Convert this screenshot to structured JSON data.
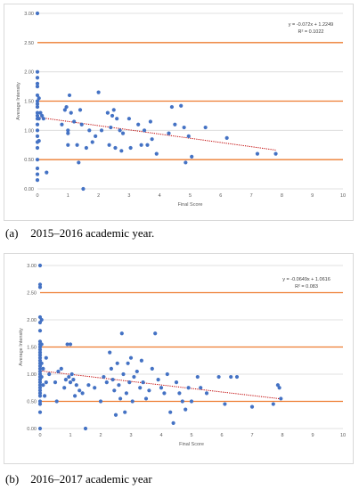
{
  "chart_data": [
    {
      "type": "scatter",
      "xlabel": "Final Score",
      "ylabel": "Average Intensity",
      "xlim": [
        0,
        10
      ],
      "ylim": [
        0,
        3
      ],
      "xticks": [
        "0",
        "1",
        "2",
        "3",
        "4",
        "5",
        "6",
        "7",
        "8",
        "9",
        "10"
      ],
      "yticks": [
        "0.00",
        "0.50",
        "1.00",
        "1.50",
        "2.00",
        "2.50",
        "3.00"
      ],
      "grid": "horizontal",
      "reference_lines": [
        0.5,
        1.5,
        2.5
      ],
      "trendline": {
        "slope": -0.072,
        "intercept": 1.2249
      },
      "equation": "y = -0.072x + 1.2249",
      "r_squared": "R² = 0.1022",
      "colors": {
        "points": "#4472c4",
        "trend": "#c00000",
        "reference": "#ed7d31",
        "grid": "#d9d9d9"
      },
      "points": [
        [
          0,
          3.0
        ],
        [
          0,
          2.0
        ],
        [
          0,
          1.9
        ],
        [
          0,
          1.8
        ],
        [
          0,
          1.75
        ],
        [
          0,
          1.6
        ],
        [
          0,
          1.5
        ],
        [
          0,
          1.45
        ],
        [
          0,
          1.4
        ],
        [
          0,
          1.3
        ],
        [
          0,
          1.25
        ],
        [
          0,
          1.2
        ],
        [
          0,
          1.1
        ],
        [
          0,
          1.0
        ],
        [
          0,
          0.9
        ],
        [
          0,
          0.8
        ],
        [
          0,
          0.7
        ],
        [
          0,
          0.5
        ],
        [
          0,
          0.35
        ],
        [
          0,
          0.25
        ],
        [
          0,
          0.15
        ],
        [
          0.05,
          1.55
        ],
        [
          0.05,
          1.2
        ],
        [
          0.05,
          0.82
        ],
        [
          0.1,
          1.3
        ],
        [
          0.15,
          1.25
        ],
        [
          0.2,
          1.2
        ],
        [
          0.3,
          0.28
        ],
        [
          0.8,
          1.1
        ],
        [
          0.9,
          1.35
        ],
        [
          0.95,
          1.4
        ],
        [
          1.0,
          1.0
        ],
        [
          1.0,
          0.95
        ],
        [
          1.0,
          0.75
        ],
        [
          1.05,
          1.6
        ],
        [
          1.1,
          1.3
        ],
        [
          1.2,
          1.15
        ],
        [
          1.3,
          0.75
        ],
        [
          1.35,
          0.45
        ],
        [
          1.4,
          1.35
        ],
        [
          1.45,
          1.1
        ],
        [
          1.5,
          0.0
        ],
        [
          1.6,
          0.7
        ],
        [
          1.7,
          1.0
        ],
        [
          1.8,
          0.8
        ],
        [
          1.9,
          0.9
        ],
        [
          2.0,
          1.65
        ],
        [
          2.1,
          1.0
        ],
        [
          2.3,
          1.3
        ],
        [
          2.35,
          0.75
        ],
        [
          2.4,
          1.05
        ],
        [
          2.45,
          1.25
        ],
        [
          2.5,
          1.35
        ],
        [
          2.55,
          0.7
        ],
        [
          2.6,
          1.2
        ],
        [
          2.7,
          1.0
        ],
        [
          2.75,
          0.65
        ],
        [
          2.8,
          0.95
        ],
        [
          3.0,
          1.2
        ],
        [
          3.05,
          0.7
        ],
        [
          3.3,
          1.1
        ],
        [
          3.4,
          0.75
        ],
        [
          3.5,
          1.0
        ],
        [
          3.6,
          0.75
        ],
        [
          3.7,
          1.15
        ],
        [
          3.75,
          0.85
        ],
        [
          3.9,
          0.6
        ],
        [
          4.3,
          0.95
        ],
        [
          4.4,
          1.4
        ],
        [
          4.5,
          1.1
        ],
        [
          4.7,
          1.42
        ],
        [
          4.8,
          1.05
        ],
        [
          4.85,
          0.45
        ],
        [
          4.95,
          0.9
        ],
        [
          5.05,
          0.55
        ],
        [
          5.5,
          1.05
        ],
        [
          6.2,
          0.87
        ],
        [
          7.2,
          0.6
        ],
        [
          7.8,
          0.6
        ]
      ]
    },
    {
      "type": "scatter",
      "xlabel": "Final Score",
      "ylabel": "Average Intensity",
      "xlim": [
        0,
        10
      ],
      "ylim": [
        0,
        3
      ],
      "xticks": [
        "0",
        "1",
        "2",
        "3",
        "4",
        "5",
        "6",
        "7",
        "8",
        "9",
        "10"
      ],
      "yticks": [
        "0.00",
        "0.50",
        "1.00",
        "1.50",
        "2.00",
        "2.50",
        "3.00"
      ],
      "grid": "horizontal",
      "reference_lines": [
        0.5,
        1.5,
        2.5
      ],
      "trendline": {
        "slope": -0.0649,
        "intercept": 1.0616
      },
      "equation": "y = -0.0649x + 1.0616",
      "r_squared": "R² = 0.083",
      "colors": {
        "points": "#4472c4",
        "trend": "#c00000",
        "reference": "#ed7d31",
        "grid": "#d9d9d9"
      },
      "points": [
        [
          0,
          3.0
        ],
        [
          0,
          2.65
        ],
        [
          0,
          2.6
        ],
        [
          0,
          2.05
        ],
        [
          0,
          1.95
        ],
        [
          0,
          1.8
        ],
        [
          0,
          1.6
        ],
        [
          0,
          1.55
        ],
        [
          0,
          1.5
        ],
        [
          0,
          1.45
        ],
        [
          0,
          1.4
        ],
        [
          0,
          1.35
        ],
        [
          0,
          1.3
        ],
        [
          0,
          1.25
        ],
        [
          0,
          1.2
        ],
        [
          0,
          1.15
        ],
        [
          0,
          1.1
        ],
        [
          0,
          1.05
        ],
        [
          0,
          1.0
        ],
        [
          0,
          0.95
        ],
        [
          0,
          0.9
        ],
        [
          0,
          0.85
        ],
        [
          0,
          0.8
        ],
        [
          0,
          0.75
        ],
        [
          0,
          0.7
        ],
        [
          0,
          0.65
        ],
        [
          0,
          0.6
        ],
        [
          0,
          0.5
        ],
        [
          0,
          0.45
        ],
        [
          0,
          0.3
        ],
        [
          0,
          0.0
        ],
        [
          0.05,
          2.0
        ],
        [
          0.05,
          1.55
        ],
        [
          0.05,
          1.2
        ],
        [
          0.05,
          0.95
        ],
        [
          0.1,
          1.1
        ],
        [
          0.1,
          0.8
        ],
        [
          0.15,
          0.6
        ],
        [
          0.2,
          1.3
        ],
        [
          0.2,
          0.85
        ],
        [
          0.3,
          1.0
        ],
        [
          0.5,
          0.85
        ],
        [
          0.55,
          0.5
        ],
        [
          0.6,
          1.05
        ],
        [
          0.7,
          1.1
        ],
        [
          0.8,
          0.75
        ],
        [
          0.85,
          0.9
        ],
        [
          0.9,
          1.55
        ],
        [
          0.95,
          0.95
        ],
        [
          1.0,
          1.55
        ],
        [
          1.0,
          0.85
        ],
        [
          1.05,
          1.0
        ],
        [
          1.1,
          0.9
        ],
        [
          1.15,
          0.6
        ],
        [
          1.2,
          0.8
        ],
        [
          1.3,
          0.7
        ],
        [
          1.4,
          0.65
        ],
        [
          1.5,
          0.0
        ],
        [
          1.6,
          0.8
        ],
        [
          1.8,
          0.75
        ],
        [
          2.0,
          0.5
        ],
        [
          2.1,
          0.95
        ],
        [
          2.2,
          0.85
        ],
        [
          2.3,
          1.4
        ],
        [
          2.35,
          1.1
        ],
        [
          2.4,
          0.9
        ],
        [
          2.45,
          0.7
        ],
        [
          2.5,
          0.25
        ],
        [
          2.55,
          1.2
        ],
        [
          2.6,
          0.8
        ],
        [
          2.65,
          0.55
        ],
        [
          2.7,
          1.75
        ],
        [
          2.75,
          1.0
        ],
        [
          2.8,
          0.3
        ],
        [
          2.85,
          0.65
        ],
        [
          2.9,
          1.2
        ],
        [
          2.95,
          0.85
        ],
        [
          3.0,
          1.3
        ],
        [
          3.05,
          0.5
        ],
        [
          3.1,
          0.95
        ],
        [
          3.2,
          1.05
        ],
        [
          3.3,
          0.75
        ],
        [
          3.35,
          1.25
        ],
        [
          3.4,
          0.85
        ],
        [
          3.5,
          0.55
        ],
        [
          3.6,
          0.7
        ],
        [
          3.7,
          1.1
        ],
        [
          3.8,
          1.75
        ],
        [
          3.9,
          0.9
        ],
        [
          4.0,
          0.75
        ],
        [
          4.1,
          0.65
        ],
        [
          4.2,
          1.0
        ],
        [
          4.3,
          0.3
        ],
        [
          4.4,
          0.1
        ],
        [
          4.5,
          0.85
        ],
        [
          4.6,
          0.65
        ],
        [
          4.7,
          0.5
        ],
        [
          4.8,
          0.35
        ],
        [
          4.9,
          0.75
        ],
        [
          5.0,
          0.5
        ],
        [
          5.2,
          0.95
        ],
        [
          5.3,
          0.75
        ],
        [
          5.5,
          0.65
        ],
        [
          5.9,
          0.95
        ],
        [
          6.1,
          0.45
        ],
        [
          6.3,
          0.95
        ],
        [
          6.5,
          0.95
        ],
        [
          7.0,
          0.4
        ],
        [
          7.7,
          0.45
        ],
        [
          7.85,
          0.8
        ],
        [
          7.9,
          0.75
        ],
        [
          7.95,
          0.55
        ]
      ]
    }
  ],
  "captions": [
    {
      "label": "(a)",
      "text": "2015–2016 academic year."
    },
    {
      "label": "(b)",
      "text": "2016–2017 academic year"
    }
  ]
}
